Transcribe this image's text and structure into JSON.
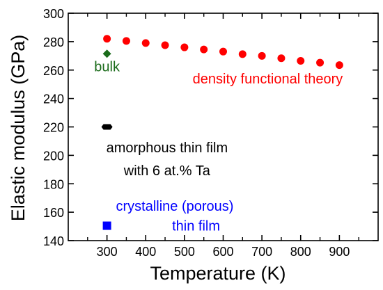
{
  "chart_data": {
    "type": "scatter",
    "xlabel": "Temperature (K)",
    "ylabel": "Elastic modulus (GPa)",
    "xlim": [
      200,
      1000
    ],
    "ylim": [
      140,
      300
    ],
    "xticks": [
      300,
      400,
      500,
      600,
      700,
      800,
      900
    ],
    "yticks": [
      140,
      160,
      180,
      200,
      220,
      240,
      260,
      280,
      300
    ],
    "grid": false,
    "series": [
      {
        "key": "dft",
        "marker": "circle",
        "color": "#ff0000",
        "points": [
          [
            300,
            282
          ],
          [
            350,
            280.5
          ],
          [
            400,
            279
          ],
          [
            450,
            277.5
          ],
          [
            500,
            276
          ],
          [
            550,
            274.5
          ],
          [
            600,
            273
          ],
          [
            650,
            271.2
          ],
          [
            700,
            270
          ],
          [
            750,
            268.3
          ],
          [
            800,
            266.5
          ],
          [
            850,
            265.2
          ],
          [
            900,
            263.5
          ]
        ]
      },
      {
        "key": "bulk",
        "marker": "diamond",
        "color": "#1a6b1a",
        "points": [
          [
            300,
            271.5
          ]
        ]
      },
      {
        "key": "amorphous",
        "marker": "hexagon",
        "color": "#000000",
        "points": [
          [
            300,
            220
          ]
        ]
      },
      {
        "key": "crystalline",
        "marker": "square",
        "color": "#0000ff",
        "points": [
          [
            300,
            150.5
          ]
        ]
      }
    ],
    "annotations": {
      "bulk": {
        "lines": [
          "bulk"
        ],
        "x": 300,
        "y": 262.5,
        "anchor": "middle",
        "color": "#1a6b1a"
      },
      "dft": {
        "lines": [
          "density functional theory"
        ],
        "x": 715,
        "y": 254,
        "anchor": "middle",
        "color": "#ff0000"
      },
      "amorphous": {
        "lines": [
          "amorphous thin film",
          "with 6 at.% Ta"
        ],
        "x": 455,
        "y": 205.5,
        "anchor": "middle",
        "color": "#000000",
        "line_step": 16
      },
      "crystalline": {
        "lines": [
          "crystalline (porous)",
          "thin film"
        ],
        "x": 475,
        "y": 164.5,
        "anchor": "middle",
        "color": "#0000ff",
        "line_step": 14,
        "offsets": [
          0,
          55
        ]
      }
    }
  }
}
